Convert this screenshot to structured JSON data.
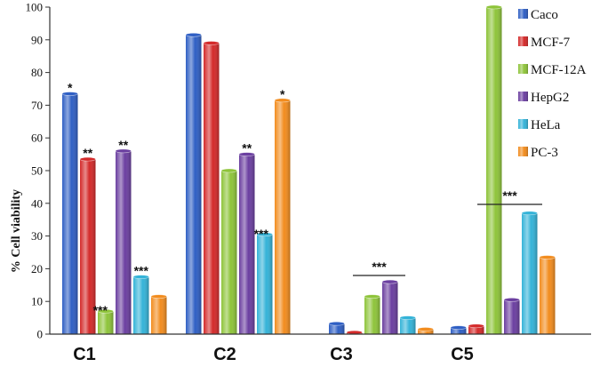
{
  "chart_data": {
    "type": "bar",
    "ylabel": "% Cell viability",
    "xlabel": "",
    "ylim": [
      0,
      100
    ],
    "yticks": [
      0,
      10,
      20,
      30,
      40,
      50,
      60,
      70,
      80,
      90,
      100
    ],
    "grid": false,
    "legend": "right",
    "categories": [
      "C1",
      "C2",
      "C3",
      "C5"
    ],
    "series": [
      {
        "name": "Caco",
        "color": "#2f5fc4",
        "values": [
          73.5,
          91.5,
          3.2,
          2.0
        ]
      },
      {
        "name": "MCF-7",
        "color": "#d42a2a",
        "values": [
          53.5,
          89.0,
          0.5,
          2.5
        ]
      },
      {
        "name": "MCF-12A",
        "color": "#8ec43a",
        "values": [
          7.0,
          50.0,
          11.5,
          100.0
        ]
      },
      {
        "name": "HepG2",
        "color": "#6b3fa0",
        "values": [
          56.0,
          55.0,
          16.0,
          10.5
        ]
      },
      {
        "name": "HeLa",
        "color": "#34b3d8",
        "values": [
          17.5,
          30.5,
          5.0,
          37.0
        ]
      },
      {
        "name": "PC-3",
        "color": "#f28c1e",
        "values": [
          11.5,
          71.5,
          1.5,
          23.5
        ]
      }
    ],
    "annotations": [
      {
        "category": "C1",
        "series": "Caco",
        "text": "*"
      },
      {
        "category": "C1",
        "series": "MCF-7",
        "text": "**"
      },
      {
        "category": "C1",
        "series": "MCF-12A",
        "text": "***"
      },
      {
        "category": "C1",
        "series": "HepG2",
        "text": "**"
      },
      {
        "category": "C1",
        "series": "HeLa",
        "text": "***"
      },
      {
        "category": "C2",
        "series": "HepG2",
        "text": "**"
      },
      {
        "category": "C2",
        "series": "HeLa",
        "text": "***"
      },
      {
        "category": "C2",
        "series": "PC-3",
        "text": "*"
      },
      {
        "category": "C3",
        "text": "***",
        "span": true
      },
      {
        "category": "C5",
        "text": "***",
        "span": true
      }
    ]
  }
}
